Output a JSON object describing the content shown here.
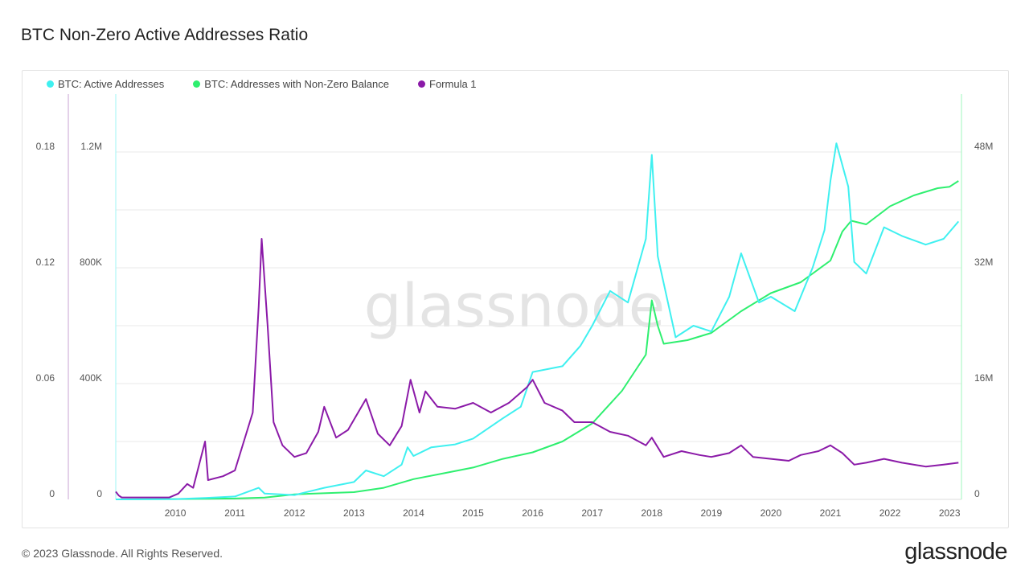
{
  "title": "BTC Non-Zero Active Addresses Ratio",
  "watermark": "glassnode",
  "footer": "© 2023 Glassnode. All Rights Reserved.",
  "brand": "glassnode",
  "colors": {
    "active": "#3ff0f0",
    "nonzero": "#2eef6f",
    "formula": "#8b1aa8",
    "grid": "#e9e9e9"
  },
  "chart_data": {
    "type": "line",
    "x_axis": {
      "ticks": [
        "2010",
        "2011",
        "2012",
        "2013",
        "2014",
        "2015",
        "2016",
        "2017",
        "2018",
        "2019",
        "2020",
        "2021",
        "2022",
        "2023"
      ],
      "range": [
        2009.0,
        2023.2
      ]
    },
    "y_axes": {
      "formula": {
        "ticks": [
          "0",
          "0.06",
          "0.12",
          "0.18"
        ],
        "range": [
          0,
          0.18
        ]
      },
      "active": {
        "ticks": [
          "0",
          "400K",
          "800K",
          "1.2M"
        ],
        "range": [
          0,
          1200000
        ]
      },
      "nonzero": {
        "ticks": [
          "0",
          "16M",
          "32M",
          "48M"
        ],
        "range": [
          0,
          48000000
        ]
      }
    },
    "legend_position": "top-left",
    "series": [
      {
        "name": "BTC: Active Addresses",
        "axis": "active",
        "color": "#3ff0f0",
        "points": [
          [
            2009.0,
            0
          ],
          [
            2010.0,
            1000
          ],
          [
            2010.5,
            5000
          ],
          [
            2011.0,
            10000
          ],
          [
            2011.4,
            40000
          ],
          [
            2011.5,
            20000
          ],
          [
            2012.0,
            15000
          ],
          [
            2012.5,
            40000
          ],
          [
            2013.0,
            60000
          ],
          [
            2013.2,
            100000
          ],
          [
            2013.5,
            80000
          ],
          [
            2013.8,
            120000
          ],
          [
            2013.9,
            180000
          ],
          [
            2014.0,
            150000
          ],
          [
            2014.3,
            180000
          ],
          [
            2014.7,
            190000
          ],
          [
            2015.0,
            210000
          ],
          [
            2015.5,
            280000
          ],
          [
            2015.8,
            320000
          ],
          [
            2016.0,
            440000
          ],
          [
            2016.5,
            460000
          ],
          [
            2016.8,
            530000
          ],
          [
            2017.0,
            600000
          ],
          [
            2017.3,
            720000
          ],
          [
            2017.6,
            680000
          ],
          [
            2017.9,
            900000
          ],
          [
            2018.0,
            1190000
          ],
          [
            2018.1,
            840000
          ],
          [
            2018.4,
            560000
          ],
          [
            2018.7,
            600000
          ],
          [
            2019.0,
            580000
          ],
          [
            2019.3,
            700000
          ],
          [
            2019.5,
            850000
          ],
          [
            2019.8,
            680000
          ],
          [
            2020.0,
            700000
          ],
          [
            2020.4,
            650000
          ],
          [
            2020.7,
            800000
          ],
          [
            2020.9,
            930000
          ],
          [
            2021.0,
            1100000
          ],
          [
            2021.1,
            1230000
          ],
          [
            2021.3,
            1080000
          ],
          [
            2021.4,
            820000
          ],
          [
            2021.6,
            780000
          ],
          [
            2021.9,
            940000
          ],
          [
            2022.2,
            910000
          ],
          [
            2022.6,
            880000
          ],
          [
            2022.9,
            900000
          ],
          [
            2023.15,
            960000
          ]
        ]
      },
      {
        "name": "BTC: Addresses with Non-Zero Balance",
        "axis": "nonzero",
        "color": "#2eef6f",
        "points": [
          [
            2009.0,
            0
          ],
          [
            2010.0,
            40000
          ],
          [
            2011.0,
            120000
          ],
          [
            2011.5,
            260000
          ],
          [
            2012.0,
            700000
          ],
          [
            2013.0,
            1000000
          ],
          [
            2013.5,
            1600000
          ],
          [
            2014.0,
            2800000
          ],
          [
            2014.5,
            3600000
          ],
          [
            2015.0,
            4400000
          ],
          [
            2015.5,
            5600000
          ],
          [
            2016.0,
            6500000
          ],
          [
            2016.5,
            8000000
          ],
          [
            2017.0,
            10500000
          ],
          [
            2017.5,
            15000000
          ],
          [
            2017.9,
            20000000
          ],
          [
            2018.0,
            27500000
          ],
          [
            2018.1,
            24000000
          ],
          [
            2018.2,
            21500000
          ],
          [
            2018.6,
            22000000
          ],
          [
            2019.0,
            23000000
          ],
          [
            2019.5,
            26000000
          ],
          [
            2020.0,
            28500000
          ],
          [
            2020.5,
            30000000
          ],
          [
            2021.0,
            33000000
          ],
          [
            2021.2,
            37000000
          ],
          [
            2021.35,
            38500000
          ],
          [
            2021.6,
            38000000
          ],
          [
            2022.0,
            40500000
          ],
          [
            2022.4,
            42000000
          ],
          [
            2022.8,
            43000000
          ],
          [
            2023.0,
            43200000
          ],
          [
            2023.15,
            44000000
          ]
        ]
      },
      {
        "name": "Formula 1",
        "axis": "formula",
        "color": "#8b1aa8",
        "points": [
          [
            2009.0,
            0.004
          ],
          [
            2009.05,
            0.002
          ],
          [
            2009.1,
            0.001
          ],
          [
            2009.9,
            0.001
          ],
          [
            2010.05,
            0.003
          ],
          [
            2010.2,
            0.008
          ],
          [
            2010.3,
            0.006
          ],
          [
            2010.5,
            0.03
          ],
          [
            2010.55,
            0.01
          ],
          [
            2010.8,
            0.012
          ],
          [
            2011.0,
            0.015
          ],
          [
            2011.15,
            0.03
          ],
          [
            2011.3,
            0.045
          ],
          [
            2011.4,
            0.1
          ],
          [
            2011.45,
            0.135
          ],
          [
            2011.55,
            0.09
          ],
          [
            2011.65,
            0.04
          ],
          [
            2011.8,
            0.028
          ],
          [
            2012.0,
            0.022
          ],
          [
            2012.2,
            0.024
          ],
          [
            2012.4,
            0.035
          ],
          [
            2012.5,
            0.048
          ],
          [
            2012.7,
            0.032
          ],
          [
            2012.9,
            0.036
          ],
          [
            2013.2,
            0.052
          ],
          [
            2013.4,
            0.034
          ],
          [
            2013.6,
            0.028
          ],
          [
            2013.8,
            0.038
          ],
          [
            2013.95,
            0.062
          ],
          [
            2014.1,
            0.045
          ],
          [
            2014.2,
            0.056
          ],
          [
            2014.4,
            0.048
          ],
          [
            2014.7,
            0.047
          ],
          [
            2015.0,
            0.05
          ],
          [
            2015.3,
            0.045
          ],
          [
            2015.6,
            0.05
          ],
          [
            2015.9,
            0.058
          ],
          [
            2016.0,
            0.062
          ],
          [
            2016.2,
            0.05
          ],
          [
            2016.5,
            0.046
          ],
          [
            2016.7,
            0.04
          ],
          [
            2017.0,
            0.04
          ],
          [
            2017.3,
            0.035
          ],
          [
            2017.6,
            0.033
          ],
          [
            2017.9,
            0.028
          ],
          [
            2018.0,
            0.032
          ],
          [
            2018.2,
            0.022
          ],
          [
            2018.5,
            0.025
          ],
          [
            2018.8,
            0.023
          ],
          [
            2019.0,
            0.022
          ],
          [
            2019.3,
            0.024
          ],
          [
            2019.5,
            0.028
          ],
          [
            2019.7,
            0.022
          ],
          [
            2020.0,
            0.021
          ],
          [
            2020.3,
            0.02
          ],
          [
            2020.5,
            0.023
          ],
          [
            2020.8,
            0.025
          ],
          [
            2021.0,
            0.028
          ],
          [
            2021.2,
            0.024
          ],
          [
            2021.4,
            0.018
          ],
          [
            2021.6,
            0.019
          ],
          [
            2021.9,
            0.021
          ],
          [
            2022.2,
            0.019
          ],
          [
            2022.6,
            0.017
          ],
          [
            2022.9,
            0.018
          ],
          [
            2023.15,
            0.019
          ]
        ]
      }
    ]
  }
}
